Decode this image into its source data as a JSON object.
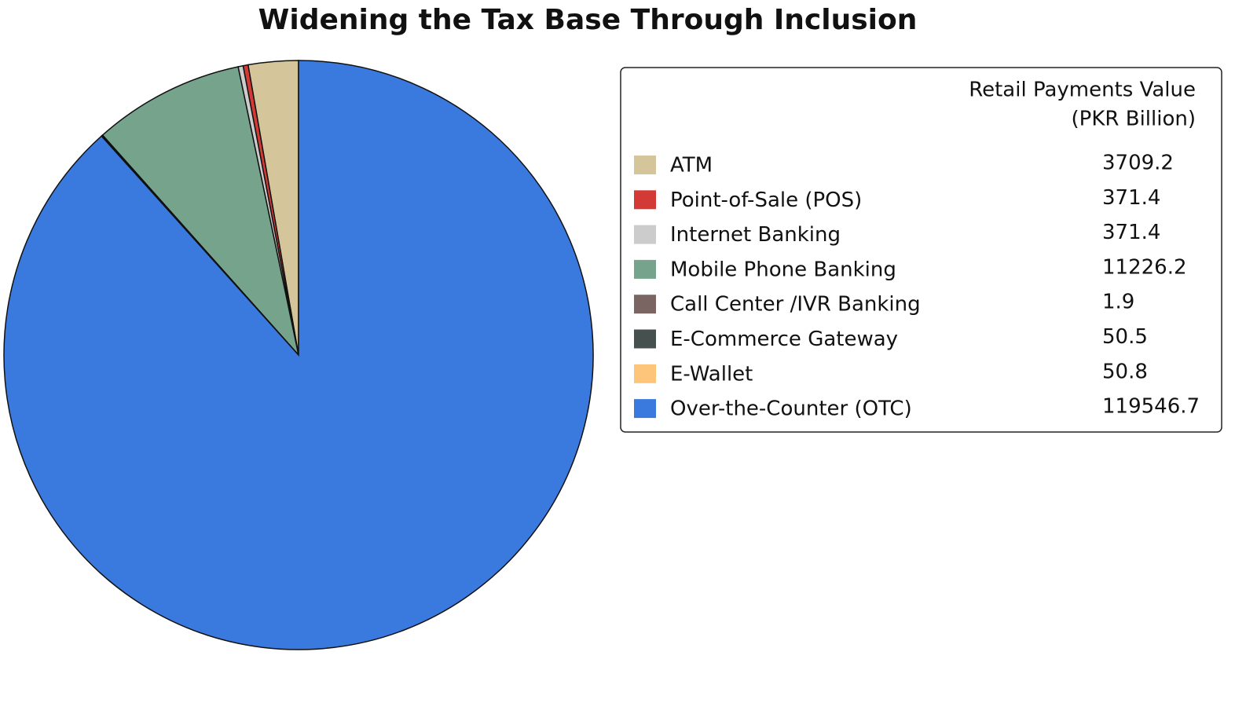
{
  "chart_data": {
    "type": "pie",
    "title": "Widening the Tax Base Through Inclusion",
    "legend_title": [
      "Retail Payments Value",
      "(PKR Billion)"
    ],
    "categories": [
      "ATM",
      "Point-of-Sale (POS)",
      "Internet Banking",
      "Mobile Phone Banking",
      "Call Center /IVR Banking",
      "E-Commerce Gateway",
      "E-Wallet",
      "Over-the-Counter (OTC)"
    ],
    "values": [
      3709.2,
      371.4,
      371.4,
      11226.2,
      1.9,
      50.5,
      50.8,
      119546.7
    ],
    "colors": [
      "#d4c69a",
      "#d33a35",
      "#cccccc",
      "#76a38b",
      "#7a6563",
      "#45504f",
      "#fcc57a",
      "#3a7ade"
    ],
    "start_angle": 90,
    "direction": "counterclockwise",
    "legend": "right"
  }
}
